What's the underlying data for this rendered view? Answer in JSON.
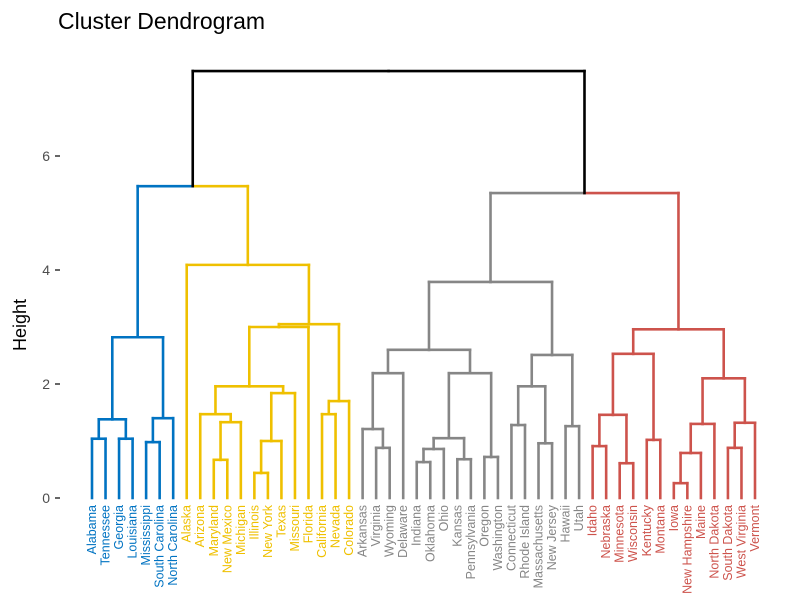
{
  "chart_data": {
    "type": "dendrogram",
    "title": "Cluster Dendrogram",
    "xlabel": "",
    "ylabel": "Height",
    "ylim": [
      0,
      7.5
    ],
    "y_ticks": [
      0,
      2,
      4,
      6
    ],
    "grid": false,
    "cluster_colors": [
      "#0073C2",
      "#EFC000",
      "#868686",
      "#CD534C"
    ],
    "root_color": "#000000",
    "tree": {
      "h": 7.49,
      "c": [
        {
          "h": 5.47,
          "c": [
            {
              "h": 2.82,
              "k": 0,
              "c": [
                {
                  "h": 1.38,
                  "c": [
                    {
                      "h": 1.04,
                      "c": [
                        "Alabama",
                        "Tennessee"
                      ]
                    },
                    {
                      "h": 1.04,
                      "c": [
                        "Georgia",
                        "Louisiana"
                      ]
                    }
                  ]
                },
                {
                  "h": 1.4,
                  "c": [
                    {
                      "h": 0.98,
                      "c": [
                        "Mississippi",
                        "South Carolina"
                      ]
                    },
                    "North Carolina"
                  ]
                }
              ]
            },
            {
              "h": 4.09,
              "k": 1,
              "c": [
                "Alaska",
                {
                  "h": 3.05,
                  "c": [
                    {
                      "h": 3.0,
                      "c": [
                        {
                          "h": 1.96,
                          "c": [
                            {
                              "h": 1.47,
                              "c": [
                                "Arizona",
                                {
                                  "h": 1.33,
                                  "c": [
                                    {
                                      "h": 0.67,
                                      "c": [
                                        "Maryland",
                                        "New Mexico"
                                      ]
                                    },
                                    "Michigan"
                                  ]
                                }
                              ]
                            },
                            {
                              "h": 1.84,
                              "c": [
                                {
                                  "h": 1.0,
                                  "c": [
                                    {
                                      "h": 0.44,
                                      "c": [
                                        "Illinois",
                                        "New York"
                                      ]
                                    },
                                    "Texas"
                                  ]
                                },
                                "Missouri"
                              ]
                            }
                          ]
                        },
                        "Florida"
                      ]
                    },
                    {
                      "h": 1.7,
                      "c": [
                        {
                          "h": 1.47,
                          "c": [
                            "California",
                            "Nevada"
                          ]
                        },
                        "Colorado"
                      ]
                    }
                  ]
                }
              ]
            }
          ]
        },
        {
          "h": 5.35,
          "c": [
            {
              "h": 3.79,
              "k": 2,
              "c": [
                {
                  "h": 2.6,
                  "c": [
                    {
                      "h": 2.19,
                      "c": [
                        {
                          "h": 1.21,
                          "c": [
                            "Arkansas",
                            {
                              "h": 0.88,
                              "c": [
                                "Virginia",
                                "Wyoming"
                              ]
                            }
                          ]
                        },
                        "Delaware"
                      ]
                    },
                    {
                      "h": 2.19,
                      "c": [
                        {
                          "h": 1.05,
                          "c": [
                            {
                              "h": 0.86,
                              "c": [
                                {
                                  "h": 0.63,
                                  "c": [
                                    "Indiana",
                                    "Oklahoma"
                                  ]
                                },
                                "Ohio"
                              ]
                            },
                            {
                              "h": 0.68,
                              "c": [
                                "Kansas",
                                "Pennsylvania"
                              ]
                            }
                          ]
                        },
                        {
                          "h": 0.72,
                          "c": [
                            "Oregon",
                            "Washington"
                          ]
                        }
                      ]
                    }
                  ]
                },
                {
                  "h": 2.51,
                  "c": [
                    {
                      "h": 1.96,
                      "c": [
                        {
                          "h": 1.28,
                          "c": [
                            "Connecticut",
                            "Rhode Island"
                          ]
                        },
                        {
                          "h": 0.96,
                          "c": [
                            "Massachusetts",
                            "New Jersey"
                          ]
                        }
                      ]
                    },
                    {
                      "h": 1.26,
                      "c": [
                        "Hawaii",
                        "Utah"
                      ]
                    }
                  ]
                }
              ]
            },
            {
              "h": 2.96,
              "k": 3,
              "c": [
                {
                  "h": 2.53,
                  "c": [
                    {
                      "h": 1.46,
                      "c": [
                        {
                          "h": 0.91,
                          "c": [
                            "Idaho",
                            "Nebraska"
                          ]
                        },
                        {
                          "h": 0.61,
                          "c": [
                            "Minnesota",
                            "Wisconsin"
                          ]
                        }
                      ]
                    },
                    {
                      "h": 1.02,
                      "c": [
                        "Kentucky",
                        "Montana"
                      ]
                    }
                  ]
                },
                {
                  "h": 2.1,
                  "c": [
                    {
                      "h": 1.3,
                      "c": [
                        {
                          "h": 0.79,
                          "c": [
                            {
                              "h": 0.26,
                              "c": [
                                "Iowa",
                                "New Hampshire"
                              ]
                            },
                            "Maine"
                          ]
                        },
                        "North Dakota"
                      ]
                    },
                    {
                      "h": 1.32,
                      "c": [
                        {
                          "h": 0.88,
                          "c": [
                            "South Dakota",
                            "West Virginia"
                          ]
                        },
                        "Vermont"
                      ]
                    }
                  ]
                }
              ]
            }
          ]
        }
      ]
    }
  }
}
